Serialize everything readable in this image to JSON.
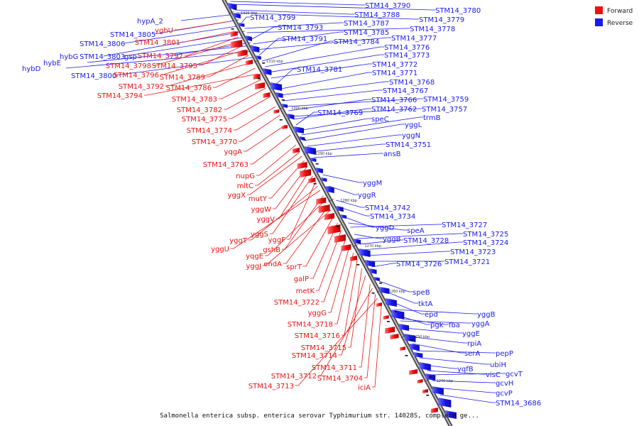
{
  "legend": {
    "forward_label": "Forward",
    "reverse_label": "Reverse",
    "forward_color": "#ee1111",
    "reverse_color": "#1a1aee"
  },
  "caption": "Salmonella enterica subsp. enterica serovar Typhimurium str. 14028S, complete ge...",
  "ticks": [
    "1320 kbp",
    "1310 kbp",
    "1300 kbp",
    "1290 kbp",
    "1280 kbp",
    "1270 kbp",
    "1260 kbp",
    "1250 kbp",
    "1240 kbp"
  ],
  "reverse_labels": [
    "STM14_3790",
    "STM14_3780",
    "STM14_3788",
    "STM14_3779",
    "STM14_3799",
    "STM14_3787",
    "STM14_3778",
    "STM14_3793",
    "STM14_3785",
    "STM14_3777",
    "STM14_3791",
    "STM14_3784",
    "STM14_3776",
    "STM14_3773",
    "STM14_3772",
    "STM14_3781",
    "STM14_3771",
    "STM14_3768",
    "STM14_3767",
    "STM14_3759",
    "STM14_3766",
    "STM14_3757",
    "STM14_3762",
    "STM14_3769",
    "speC",
    "trmB",
    "yggL",
    "yggN",
    "STM14_3751",
    "ansB",
    "yggM",
    "yggR",
    "STM14_3742",
    "STM14_3734",
    "yggD",
    "speA",
    "STM14_3727",
    "yggB",
    "STM14_3725",
    "STM14_3728",
    "STM14_3724",
    "STM14_3723",
    "STM14_3721",
    "STM14_3726",
    "speB",
    "tktA",
    "epd",
    "yggB",
    "pgk",
    "fba",
    "yggA",
    "yggE",
    "rpiA",
    "serA",
    "pepP",
    "ubiH",
    "yqfB",
    "visC",
    "gcvT",
    "gcvH",
    "gcvP",
    "STM14_3686",
    "hypA_2",
    "STM14_3805",
    "STM14_3806",
    "hybG",
    "STM14_3803",
    "gsp",
    "hybE",
    "hybD",
    "STM14_3800"
  ],
  "forward_labels": [
    "yghU",
    "STM14_3801",
    "STM14_3797",
    "STM14_3798",
    "STM14_3795",
    "STM14_3796",
    "STM14_3789",
    "STM14_3792",
    "STM14_3786",
    "STM14_3794",
    "STM14_3783",
    "STM14_3782",
    "STM14_3775",
    "STM14_3774",
    "STM14_3770",
    "yqgA",
    "STM14_3763",
    "nupG",
    "mltC",
    "yggX",
    "mutY",
    "yggW",
    "yggV",
    "yggS",
    "yggF",
    "yggT",
    "yggU",
    "gshB",
    "yqgE",
    "endA",
    "yggJ",
    "sprT",
    "galP",
    "metK",
    "STM14_3722",
    "yggG",
    "STM14_3718",
    "STM14_3716",
    "STM14_3715",
    "STM14_3714",
    "STM14_3711",
    "STM14_3712",
    "STM14_3704",
    "STM14_3713",
    "iciA"
  ]
}
